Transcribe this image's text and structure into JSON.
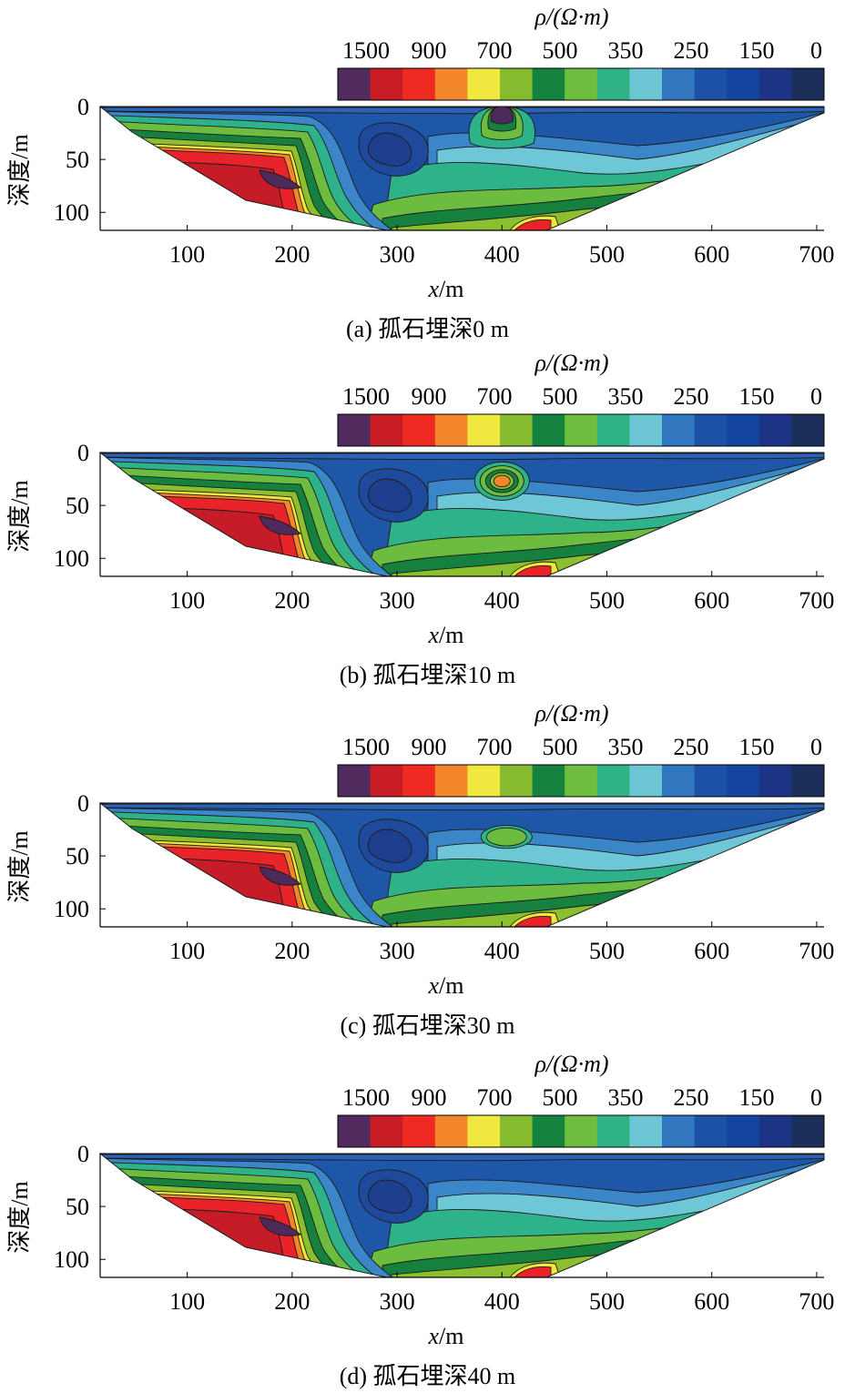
{
  "chart_data": [
    {
      "type": "heatmap",
      "caption": "(a) 孤石埋深0 m",
      "boulder_depth_m": 0,
      "xlabel_var": "x",
      "xlabel_unit": "/m",
      "ylabel": "深度/m",
      "colorbar_title": "ρ/(Ω·m)",
      "colorbar_ticks": [
        "1500",
        "900",
        "700",
        "500",
        "350",
        "250",
        "150",
        "0"
      ],
      "x_ticks": [
        100,
        200,
        300,
        400,
        500,
        600,
        700
      ],
      "y_ticks": [
        0,
        50,
        100
      ],
      "xlim": [
        17,
        707
      ],
      "ylim": [
        0,
        117
      ]
    },
    {
      "type": "heatmap",
      "caption": "(b) 孤石埋深10 m",
      "boulder_depth_m": 10,
      "xlabel_var": "x",
      "xlabel_unit": "/m",
      "ylabel": "深度/m",
      "colorbar_title": "ρ/(Ω·m)",
      "colorbar_ticks": [
        "1500",
        "900",
        "700",
        "500",
        "350",
        "250",
        "150",
        "0"
      ],
      "x_ticks": [
        100,
        200,
        300,
        400,
        500,
        600,
        700
      ],
      "y_ticks": [
        0,
        50,
        100
      ],
      "xlim": [
        17,
        707
      ],
      "ylim": [
        0,
        117
      ]
    },
    {
      "type": "heatmap",
      "caption": "(c) 孤石埋深30 m",
      "boulder_depth_m": 30,
      "xlabel_var": "x",
      "xlabel_unit": "/m",
      "ylabel": "深度/m",
      "colorbar_title": "ρ/(Ω·m)",
      "colorbar_ticks": [
        "1500",
        "900",
        "700",
        "500",
        "350",
        "250",
        "150",
        "0"
      ],
      "x_ticks": [
        100,
        200,
        300,
        400,
        500,
        600,
        700
      ],
      "y_ticks": [
        0,
        50,
        100
      ],
      "xlim": [
        17,
        707
      ],
      "ylim": [
        0,
        117
      ]
    },
    {
      "type": "heatmap",
      "caption": "(d) 孤石埋深40 m",
      "boulder_depth_m": 40,
      "xlabel_var": "x",
      "xlabel_unit": "/m",
      "ylabel": "深度/m",
      "colorbar_title": "ρ/(Ω·m)",
      "colorbar_ticks": [
        "1500",
        "900",
        "700",
        "500",
        "350",
        "250",
        "150",
        "0"
      ],
      "x_ticks": [
        100,
        200,
        300,
        400,
        500,
        600,
        700
      ],
      "y_ticks": [
        0,
        50,
        100
      ],
      "xlim": [
        17,
        707
      ],
      "ylim": [
        0,
        117
      ]
    }
  ],
  "colors": {
    "colorbar": [
      "#512a5e",
      "#c91d26",
      "#ee2a22",
      "#f3852a",
      "#f0e83f",
      "#86bb30",
      "#15823f",
      "#6fbd3f",
      "#2fb384",
      "#6cc6d3",
      "#3077c0",
      "#1d51a6",
      "#1345a0",
      "#1c3386",
      "#1c2f5b"
    ],
    "deep_blue": "#1d3f8e",
    "mid_blue": "#1f57a8",
    "light_blue": "#3a86c8",
    "cyan": "#6ec7d6",
    "teal": "#2eb28a",
    "green": "#6cbc40",
    "dark_green": "#16803f",
    "yellow_green": "#8cbf2f",
    "yellow": "#f1e63c",
    "orange": "#f3852a",
    "red": "#e8232a",
    "dark_red": "#c51c27",
    "purple": "#4d2a5c"
  }
}
